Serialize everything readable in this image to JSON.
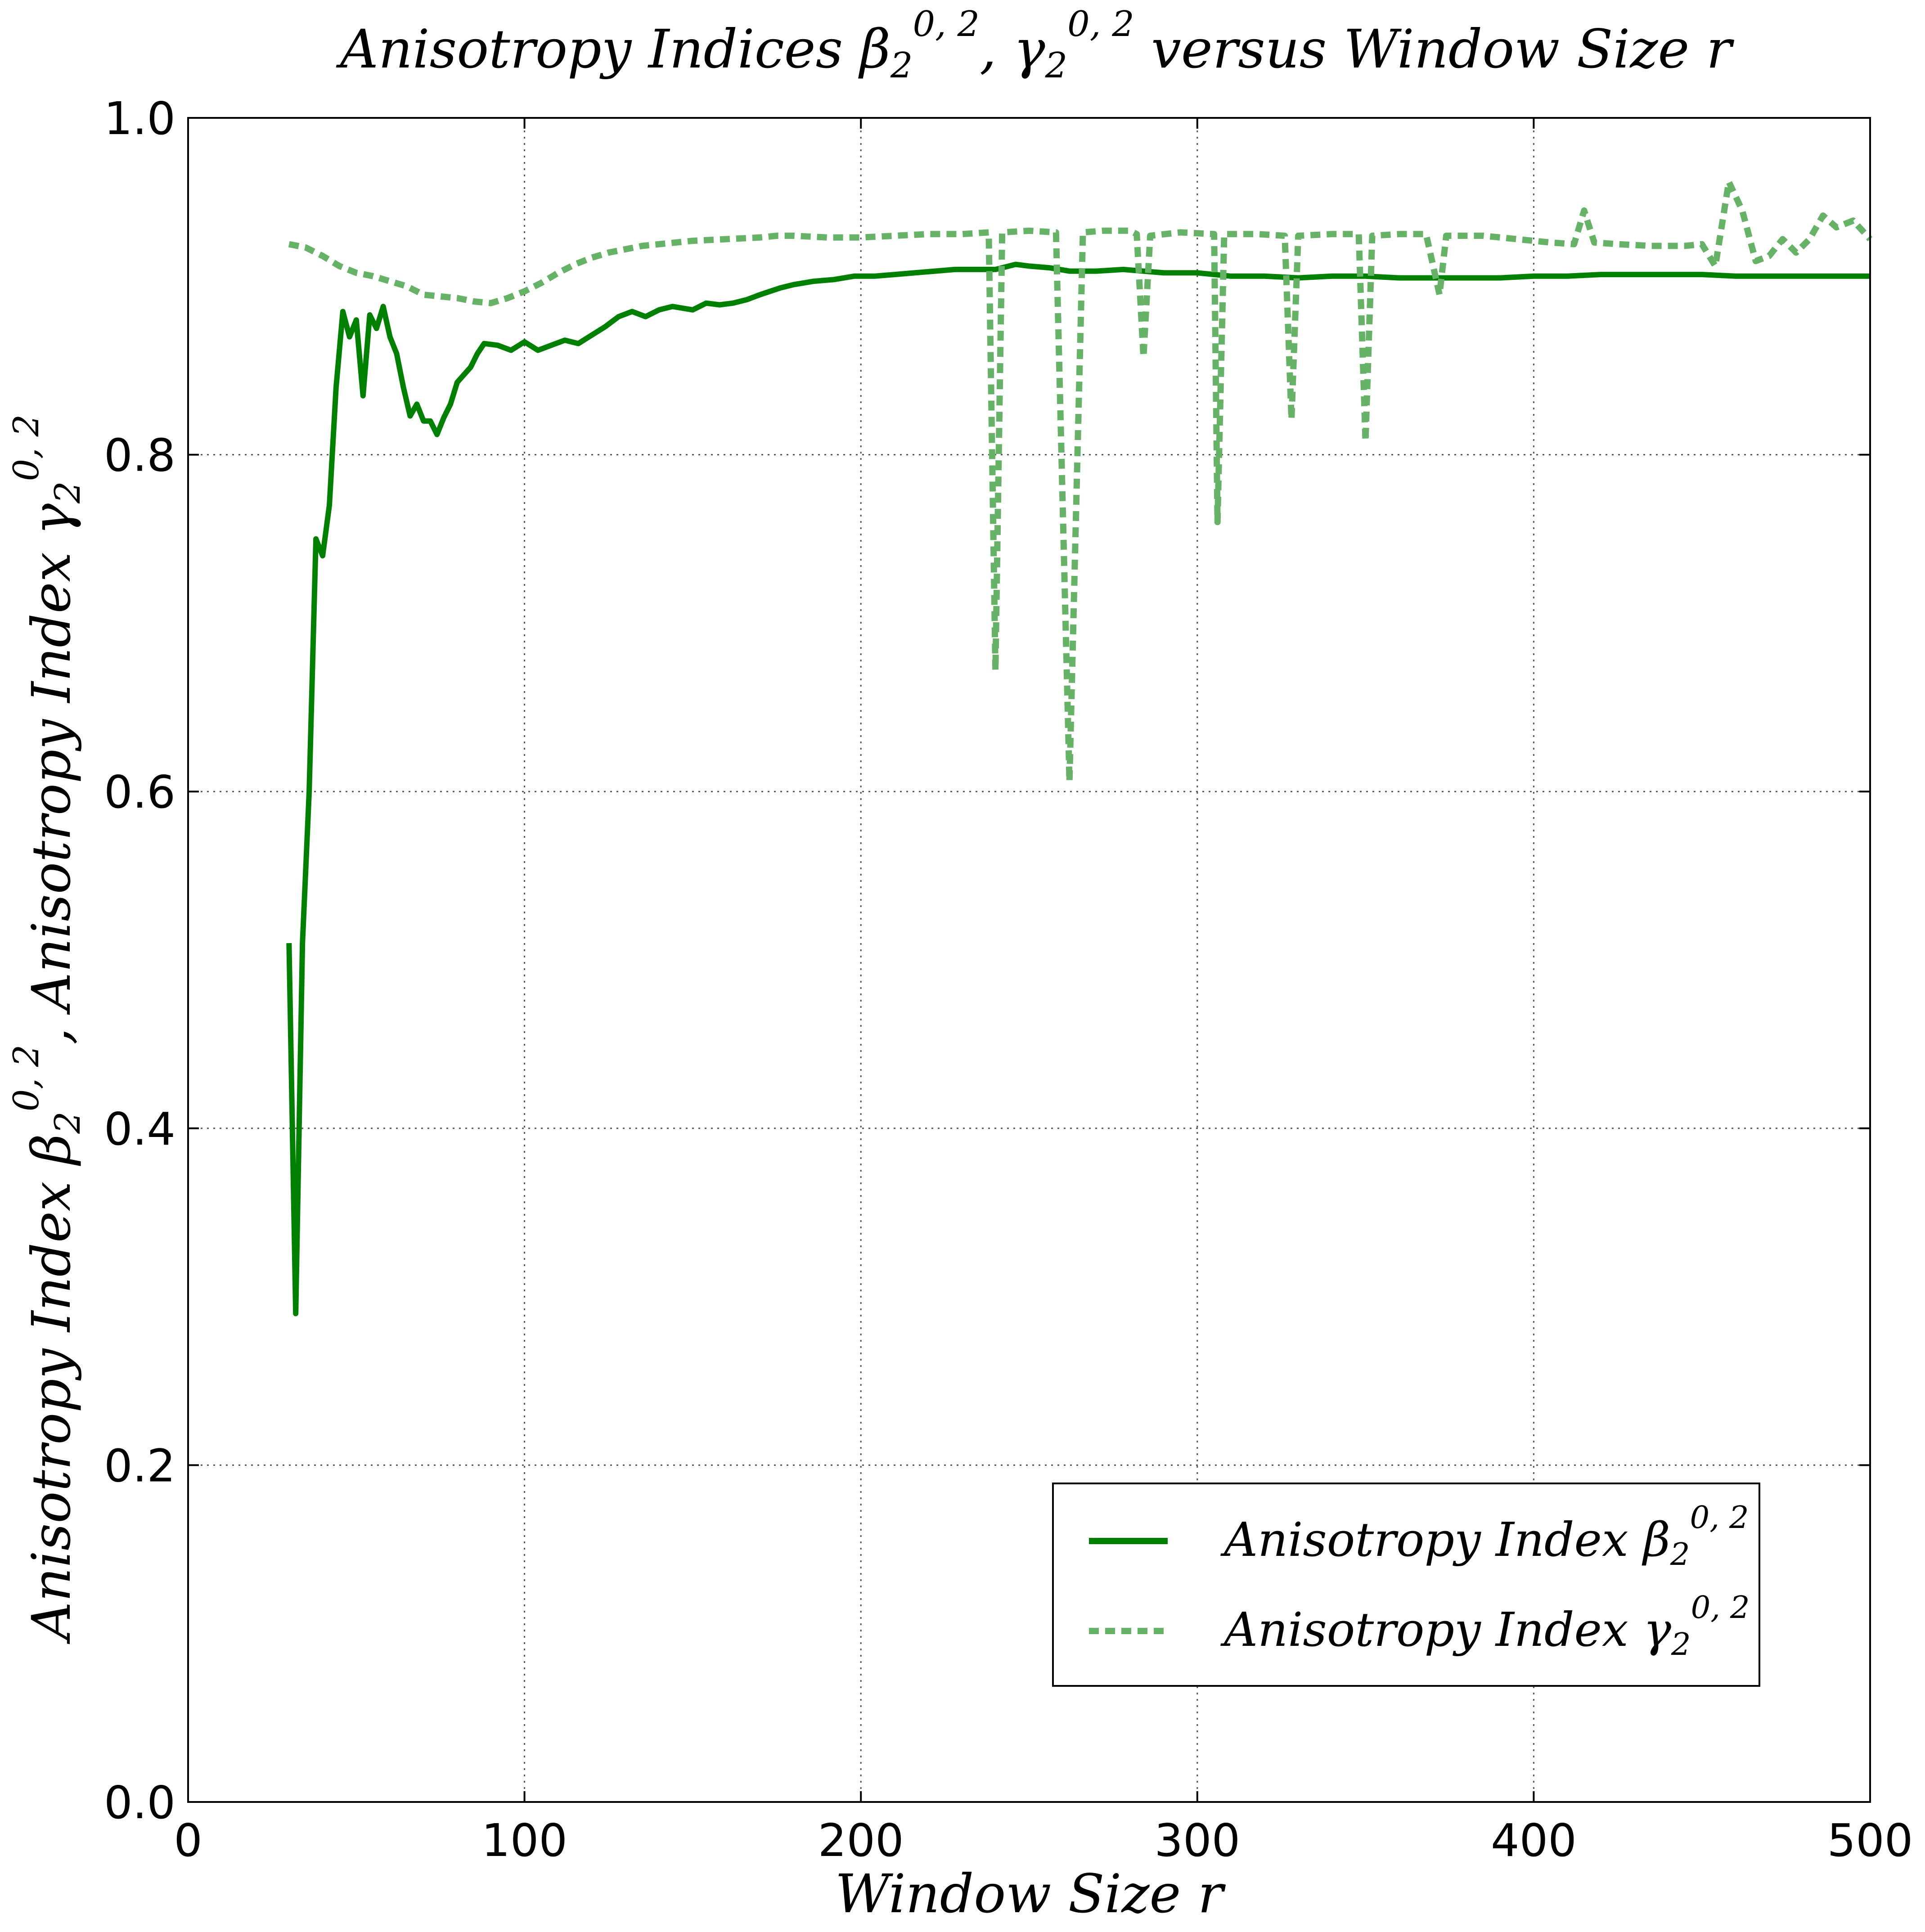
{
  "chart_data": {
    "type": "line",
    "title": {
      "prefix": "Anisotropy Indices ",
      "symbol1": "β",
      "sub1": "2",
      "sup1": "0, 2",
      "separator": ", ",
      "symbol2": "γ",
      "sub2": "2",
      "sup2": "0, 2",
      "suffix": " versus Window Size r"
    },
    "xlabel": "Window Size r",
    "ylabel": {
      "prefix1": "Anisotropy Index ",
      "symbol1": "β",
      "sub1": "2",
      "sup1": "0, 2",
      "separator": ",  ",
      "prefix2": "Anisotropy Index ",
      "symbol2": "γ",
      "sub2": "2",
      "sup2": "0, 2"
    },
    "xlim": [
      0,
      500
    ],
    "ylim": [
      0.0,
      1.0
    ],
    "x_ticks": [
      "0",
      "100",
      "200",
      "300",
      "400",
      "500"
    ],
    "y_ticks": [
      "0.0",
      "0.2",
      "0.4",
      "0.6",
      "0.8",
      "1.0"
    ],
    "grid": true,
    "legend_position": "lower-right",
    "series": [
      {
        "name": "Anisotropy Index β₂^{0,2}",
        "legend": {
          "prefix": "Anisotropy Index ",
          "symbol": "β",
          "sub": "2",
          "sup": "0, 2"
        },
        "color": "#008000",
        "style": "solid",
        "points": [
          [
            30,
            0.51
          ],
          [
            32,
            0.29
          ],
          [
            34,
            0.51
          ],
          [
            36,
            0.6
          ],
          [
            38,
            0.75
          ],
          [
            40,
            0.74
          ],
          [
            42,
            0.77
          ],
          [
            44,
            0.84
          ],
          [
            46,
            0.885
          ],
          [
            48,
            0.87
          ],
          [
            50,
            0.88
          ],
          [
            52,
            0.835
          ],
          [
            54,
            0.883
          ],
          [
            56,
            0.875
          ],
          [
            58,
            0.888
          ],
          [
            60,
            0.87
          ],
          [
            62,
            0.86
          ],
          [
            64,
            0.84
          ],
          [
            66,
            0.823
          ],
          [
            68,
            0.83
          ],
          [
            70,
            0.82
          ],
          [
            72,
            0.82
          ],
          [
            74,
            0.812
          ],
          [
            76,
            0.822
          ],
          [
            78,
            0.83
          ],
          [
            80,
            0.843
          ],
          [
            84,
            0.852
          ],
          [
            86,
            0.86
          ],
          [
            88,
            0.866
          ],
          [
            92,
            0.865
          ],
          [
            96,
            0.862
          ],
          [
            100,
            0.867
          ],
          [
            104,
            0.862
          ],
          [
            108,
            0.865
          ],
          [
            112,
            0.868
          ],
          [
            116,
            0.866
          ],
          [
            120,
            0.871
          ],
          [
            124,
            0.876
          ],
          [
            128,
            0.882
          ],
          [
            132,
            0.885
          ],
          [
            136,
            0.882
          ],
          [
            140,
            0.886
          ],
          [
            144,
            0.888
          ],
          [
            150,
            0.886
          ],
          [
            154,
            0.89
          ],
          [
            158,
            0.889
          ],
          [
            162,
            0.89
          ],
          [
            166,
            0.892
          ],
          [
            170,
            0.895
          ],
          [
            176,
            0.899
          ],
          [
            180,
            0.901
          ],
          [
            186,
            0.903
          ],
          [
            192,
            0.904
          ],
          [
            198,
            0.906
          ],
          [
            204,
            0.906
          ],
          [
            210,
            0.907
          ],
          [
            216,
            0.908
          ],
          [
            222,
            0.909
          ],
          [
            228,
            0.91
          ],
          [
            234,
            0.91
          ],
          [
            240,
            0.91
          ],
          [
            246,
            0.913
          ],
          [
            250,
            0.912
          ],
          [
            256,
            0.911
          ],
          [
            262,
            0.909
          ],
          [
            270,
            0.909
          ],
          [
            278,
            0.91
          ],
          [
            284,
            0.909
          ],
          [
            290,
            0.908
          ],
          [
            300,
            0.908
          ],
          [
            310,
            0.906
          ],
          [
            320,
            0.906
          ],
          [
            330,
            0.905
          ],
          [
            340,
            0.906
          ],
          [
            350,
            0.906
          ],
          [
            360,
            0.905
          ],
          [
            370,
            0.905
          ],
          [
            380,
            0.905
          ],
          [
            390,
            0.905
          ],
          [
            400,
            0.906
          ],
          [
            410,
            0.906
          ],
          [
            420,
            0.907
          ],
          [
            430,
            0.907
          ],
          [
            440,
            0.907
          ],
          [
            450,
            0.907
          ],
          [
            460,
            0.906
          ],
          [
            470,
            0.906
          ],
          [
            480,
            0.906
          ],
          [
            490,
            0.906
          ],
          [
            500,
            0.906
          ]
        ]
      },
      {
        "name": "Anisotropy Index γ₂^{0,2}",
        "legend": {
          "prefix": "Anisotropy Index ",
          "symbol": "γ",
          "sub": "2",
          "sup": "0, 2"
        },
        "color": "#66b266",
        "style": "dashed",
        "points": [
          [
            30,
            0.925
          ],
          [
            35,
            0.923
          ],
          [
            40,
            0.918
          ],
          [
            45,
            0.912
          ],
          [
            50,
            0.908
          ],
          [
            55,
            0.906
          ],
          [
            60,
            0.903
          ],
          [
            65,
            0.9
          ],
          [
            70,
            0.895
          ],
          [
            75,
            0.894
          ],
          [
            80,
            0.893
          ],
          [
            85,
            0.891
          ],
          [
            90,
            0.89
          ],
          [
            95,
            0.893
          ],
          [
            100,
            0.897
          ],
          [
            105,
            0.902
          ],
          [
            110,
            0.908
          ],
          [
            115,
            0.913
          ],
          [
            120,
            0.917
          ],
          [
            125,
            0.92
          ],
          [
            130,
            0.922
          ],
          [
            135,
            0.924
          ],
          [
            140,
            0.925
          ],
          [
            150,
            0.927
          ],
          [
            160,
            0.928
          ],
          [
            170,
            0.929
          ],
          [
            175,
            0.93
          ],
          [
            180,
            0.93
          ],
          [
            190,
            0.929
          ],
          [
            200,
            0.929
          ],
          [
            210,
            0.93
          ],
          [
            220,
            0.931
          ],
          [
            230,
            0.931
          ],
          [
            238,
            0.932
          ],
          [
            240,
            0.672
          ],
          [
            242,
            0.932
          ],
          [
            250,
            0.933
          ],
          [
            258,
            0.932
          ],
          [
            262,
            0.606
          ],
          [
            266,
            0.932
          ],
          [
            272,
            0.933
          ],
          [
            280,
            0.933
          ],
          [
            282,
            0.931
          ],
          [
            284,
            0.858
          ],
          [
            286,
            0.93
          ],
          [
            295,
            0.932
          ],
          [
            305,
            0.931
          ],
          [
            306,
            0.76
          ],
          [
            308,
            0.931
          ],
          [
            318,
            0.931
          ],
          [
            326,
            0.93
          ],
          [
            328,
            0.821
          ],
          [
            330,
            0.93
          ],
          [
            340,
            0.931
          ],
          [
            348,
            0.931
          ],
          [
            350,
            0.808
          ],
          [
            352,
            0.93
          ],
          [
            360,
            0.931
          ],
          [
            368,
            0.931
          ],
          [
            372,
            0.895
          ],
          [
            374,
            0.93
          ],
          [
            385,
            0.93
          ],
          [
            395,
            0.928
          ],
          [
            405,
            0.926
          ],
          [
            412,
            0.925
          ],
          [
            415,
            0.945
          ],
          [
            418,
            0.926
          ],
          [
            425,
            0.925
          ],
          [
            435,
            0.924
          ],
          [
            445,
            0.924
          ],
          [
            450,
            0.925
          ],
          [
            454,
            0.912
          ],
          [
            458,
            0.962
          ],
          [
            462,
            0.945
          ],
          [
            466,
            0.915
          ],
          [
            470,
            0.918
          ],
          [
            474,
            0.928
          ],
          [
            478,
            0.92
          ],
          [
            482,
            0.928
          ],
          [
            486,
            0.942
          ],
          [
            490,
            0.935
          ],
          [
            495,
            0.939
          ],
          [
            500,
            0.928
          ]
        ]
      }
    ]
  }
}
